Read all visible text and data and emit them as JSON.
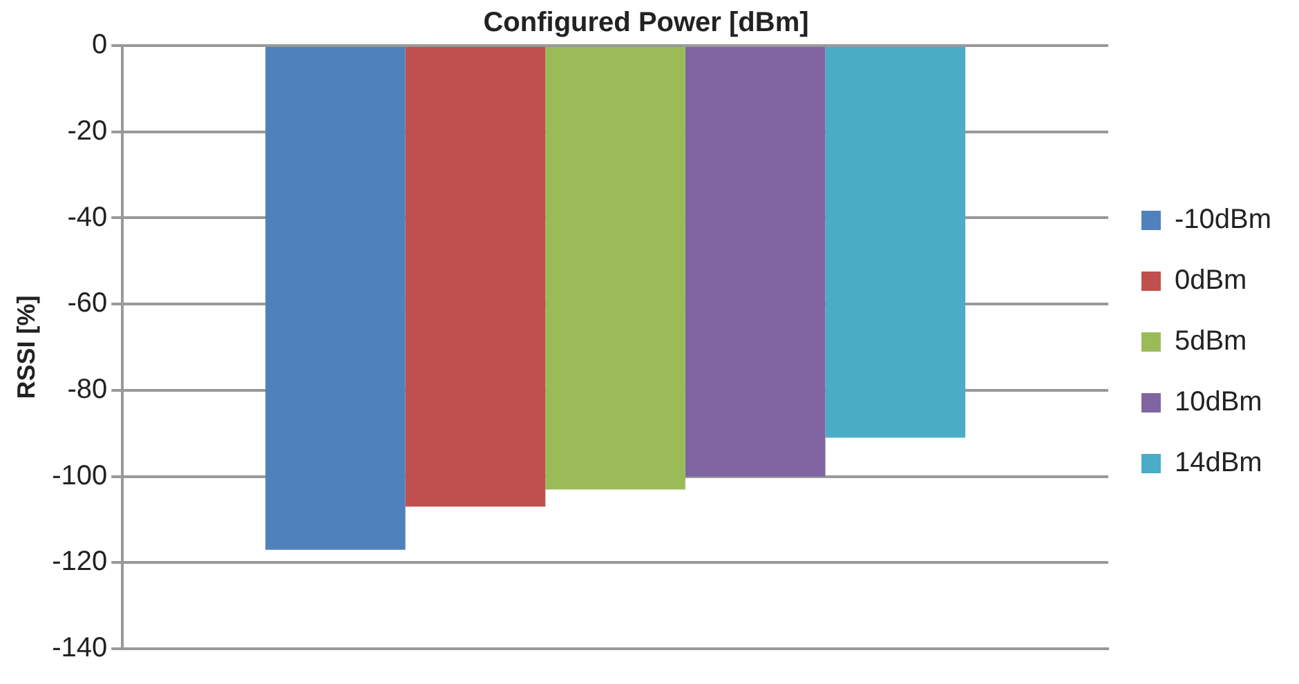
{
  "chart_data": {
    "type": "bar",
    "title": "Configured Power [dBm]",
    "ylabel": "RSSI [%]",
    "categories": [
      null
    ],
    "series": [
      {
        "name": "-10dBm",
        "color": "#4f81bd",
        "values": [
          -117
        ]
      },
      {
        "name": "0dBm",
        "color": "#c0504d",
        "values": [
          -107
        ]
      },
      {
        "name": "5dBm",
        "color": "#9bbb59",
        "values": [
          -103
        ]
      },
      {
        "name": "10dBm",
        "color": "#8064a2",
        "values": [
          -100
        ]
      },
      {
        "name": "14dBm",
        "color": "#4bacc6",
        "values": [
          -91
        ]
      }
    ],
    "ylim": [
      -140,
      0
    ],
    "yticks": [
      -140,
      -120,
      -100,
      -80,
      -60,
      -40,
      -20,
      0
    ],
    "grid": "y",
    "legend": "right"
  }
}
